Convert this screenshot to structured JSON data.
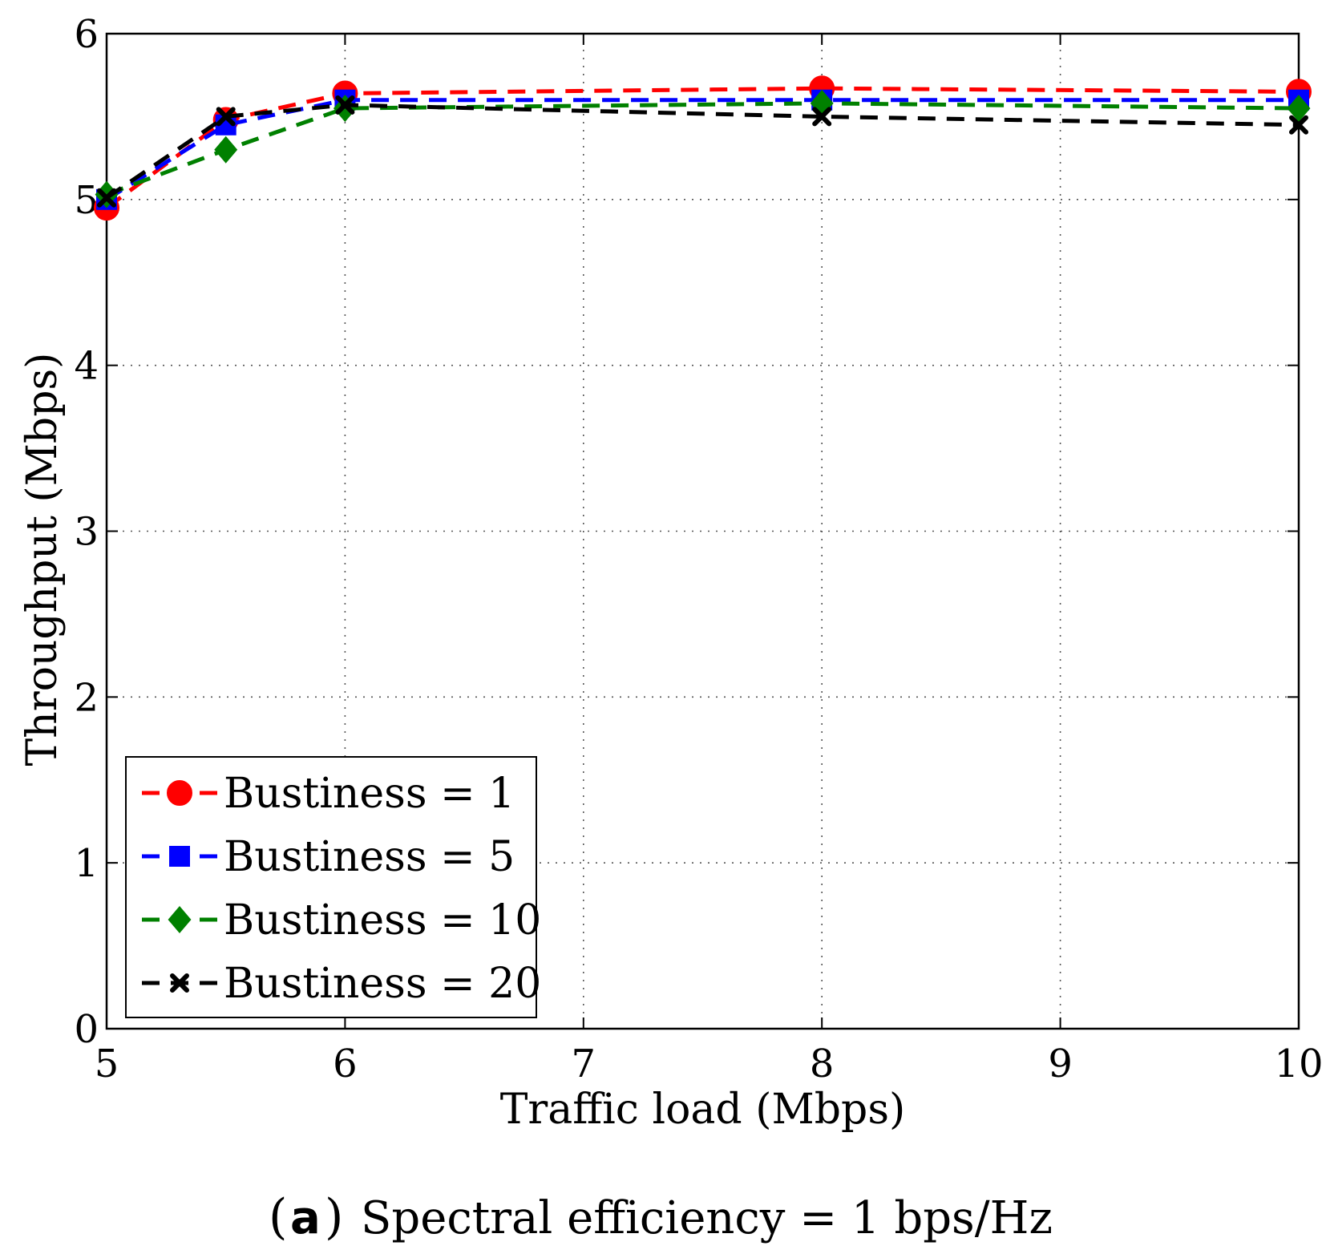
{
  "chart_data": {
    "type": "line",
    "xlabel": "Traffic load (Mbps)",
    "ylabel": "Throughput (Mbps)",
    "xlim": [
      5,
      10
    ],
    "ylim": [
      0,
      6
    ],
    "xticks": [
      "5",
      "6",
      "7",
      "8",
      "9",
      "10"
    ],
    "yticks": [
      "0",
      "1",
      "2",
      "3",
      "4",
      "5",
      "6"
    ],
    "grid": true,
    "legend_position": "bottom-left",
    "x": [
      5,
      5.5,
      6,
      8,
      10
    ],
    "series": [
      {
        "name": "Bustiness = 1",
        "color": "#ff0000",
        "marker": "circle",
        "values": [
          4.95,
          5.48,
          5.64,
          5.67,
          5.65
        ]
      },
      {
        "name": "Bustiness = 5",
        "color": "#0000ff",
        "marker": "square",
        "values": [
          5.0,
          5.45,
          5.6,
          5.6,
          5.6
        ]
      },
      {
        "name": "Bustiness = 10",
        "color": "#008000",
        "marker": "diamond",
        "values": [
          5.03,
          5.3,
          5.55,
          5.58,
          5.55
        ]
      },
      {
        "name": "Bustiness = 20",
        "color": "#000000",
        "marker": "x",
        "values": [
          5.01,
          5.5,
          5.57,
          5.5,
          5.45
        ]
      }
    ]
  },
  "caption": {
    "label": "a",
    "text": "Spectral efficiency = 1 bps/Hz"
  }
}
